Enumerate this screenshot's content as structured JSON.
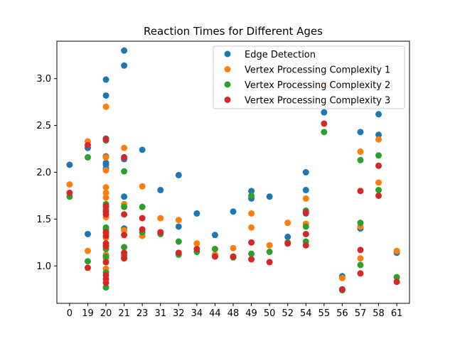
{
  "chart_data": {
    "type": "scatter",
    "title": "Reaction Times for Different Ages",
    "xlabel": "",
    "ylabel": "",
    "categories": [
      "0",
      "19",
      "20",
      "21",
      "23",
      "31",
      "32",
      "34",
      "44",
      "48",
      "49",
      "50",
      "52",
      "54",
      "55",
      "56",
      "57",
      "58",
      "61"
    ],
    "yticks": [
      "1.0",
      "1.5",
      "2.0",
      "2.5",
      "3.0"
    ],
    "ylim": [
      0.6,
      3.4
    ],
    "legend_position": "top-right",
    "series": [
      {
        "name": "Edge Detection",
        "color": "#1f77b4",
        "points": [
          [
            "0",
            2.08
          ],
          [
            "19",
            2.26
          ],
          [
            "19",
            1.34
          ],
          [
            "20",
            2.99
          ],
          [
            "20",
            2.82
          ],
          [
            "20",
            2.36
          ],
          [
            "20",
            2.17
          ],
          [
            "20",
            2.1
          ],
          [
            "20",
            2.08
          ],
          [
            "20",
            2.04
          ],
          [
            "21",
            3.3
          ],
          [
            "21",
            3.14
          ],
          [
            "21",
            2.14
          ],
          [
            "21",
            1.74
          ],
          [
            "21",
            1.4
          ],
          [
            "23",
            2.24
          ],
          [
            "31",
            1.81
          ],
          [
            "32",
            1.97
          ],
          [
            "32",
            1.42
          ],
          [
            "34",
            1.56
          ],
          [
            "44",
            1.33
          ],
          [
            "48",
            1.58
          ],
          [
            "49",
            1.8
          ],
          [
            "49",
            1.72
          ],
          [
            "50",
            1.74
          ],
          [
            "52",
            1.31
          ],
          [
            "54",
            2.0
          ],
          [
            "54",
            1.81
          ],
          [
            "54",
            1.56
          ],
          [
            "55",
            2.64
          ],
          [
            "56",
            0.89
          ],
          [
            "57",
            2.43
          ],
          [
            "57",
            1.4
          ],
          [
            "58",
            2.62
          ],
          [
            "58",
            2.4
          ],
          [
            "61",
            1.14
          ]
        ]
      },
      {
        "name": "Vertex Processing Complexity 1",
        "color": "#ff7f0e",
        "points": [
          [
            "0",
            1.87
          ],
          [
            "19",
            2.33
          ],
          [
            "19",
            1.16
          ],
          [
            "20",
            2.7
          ],
          [
            "20",
            2.16
          ],
          [
            "20",
            2.02
          ],
          [
            "20",
            1.84
          ],
          [
            "20",
            1.78
          ],
          [
            "20",
            1.73
          ],
          [
            "20",
            1.62
          ],
          [
            "20",
            1.58
          ],
          [
            "20",
            1.52
          ],
          [
            "20",
            1.35
          ],
          [
            "20",
            1.3
          ],
          [
            "20",
            1.22
          ],
          [
            "20",
            1.12
          ],
          [
            "20",
            1.08
          ],
          [
            "20",
            0.97
          ],
          [
            "21",
            2.26
          ],
          [
            "21",
            1.66
          ],
          [
            "21",
            1.38
          ],
          [
            "23",
            1.85
          ],
          [
            "23",
            1.32
          ],
          [
            "31",
            1.51
          ],
          [
            "32",
            1.49
          ],
          [
            "34",
            1.24
          ],
          [
            "44",
            1.12
          ],
          [
            "48",
            1.19
          ],
          [
            "49",
            1.56
          ],
          [
            "49",
            1.41
          ],
          [
            "50",
            1.22
          ],
          [
            "52",
            1.46
          ],
          [
            "54",
            1.72
          ],
          [
            "54",
            1.45
          ],
          [
            "55",
            2.94
          ],
          [
            "56",
            0.87
          ],
          [
            "57",
            2.22
          ],
          [
            "57",
            1.42
          ],
          [
            "57",
            1.08
          ],
          [
            "58",
            2.35
          ],
          [
            "58",
            1.89
          ],
          [
            "61",
            1.16
          ]
        ]
      },
      {
        "name": "Vertex Processing Complexity 2",
        "color": "#2ca02c",
        "points": [
          [
            "0",
            1.74
          ],
          [
            "19",
            2.16
          ],
          [
            "19",
            1.05
          ],
          [
            "20",
            2.34
          ],
          [
            "20",
            1.66
          ],
          [
            "20",
            1.6
          ],
          [
            "20",
            1.41
          ],
          [
            "20",
            1.39
          ],
          [
            "20",
            1.18
          ],
          [
            "20",
            1.1
          ],
          [
            "20",
            0.93
          ],
          [
            "20",
            0.77
          ],
          [
            "21",
            2.01
          ],
          [
            "21",
            1.63
          ],
          [
            "21",
            1.2
          ],
          [
            "21",
            1.11
          ],
          [
            "23",
            1.63
          ],
          [
            "23",
            1.36
          ],
          [
            "31",
            1.34
          ],
          [
            "32",
            1.26
          ],
          [
            "32",
            1.12
          ],
          [
            "34",
            1.15
          ],
          [
            "44",
            1.18
          ],
          [
            "48",
            1.09
          ],
          [
            "49",
            1.75
          ],
          [
            "49",
            1.13
          ],
          [
            "50",
            1.15
          ],
          [
            "52",
            1.25
          ],
          [
            "54",
            1.59
          ],
          [
            "54",
            1.42
          ],
          [
            "54",
            1.26
          ],
          [
            "55",
            2.43
          ],
          [
            "56",
            0.74
          ],
          [
            "57",
            2.13
          ],
          [
            "57",
            1.46
          ],
          [
            "57",
            1.01
          ],
          [
            "58",
            2.18
          ],
          [
            "58",
            1.81
          ],
          [
            "61",
            0.88
          ]
        ]
      },
      {
        "name": "Vertex Processing Complexity 3",
        "color": "#d62728",
        "points": [
          [
            "0",
            1.78
          ],
          [
            "19",
            2.29
          ],
          [
            "19",
            0.98
          ],
          [
            "20",
            2.35
          ],
          [
            "20",
            1.64
          ],
          [
            "20",
            1.58
          ],
          [
            "20",
            1.55
          ],
          [
            "20",
            1.36
          ],
          [
            "20",
            1.32
          ],
          [
            "20",
            1.24
          ],
          [
            "20",
            1.21
          ],
          [
            "20",
            1.04
          ],
          [
            "20",
            0.9
          ],
          [
            "20",
            0.86
          ],
          [
            "20",
            0.82
          ],
          [
            "21",
            2.16
          ],
          [
            "21",
            1.55
          ],
          [
            "21",
            1.33
          ],
          [
            "21",
            1.14
          ],
          [
            "21",
            1.08
          ],
          [
            "23",
            1.51
          ],
          [
            "23",
            1.39
          ],
          [
            "31",
            1.36
          ],
          [
            "32",
            1.14
          ],
          [
            "34",
            1.18
          ],
          [
            "44",
            1.1
          ],
          [
            "48",
            1.1
          ],
          [
            "49",
            1.25
          ],
          [
            "49",
            1.07
          ],
          [
            "50",
            1.04
          ],
          [
            "52",
            1.24
          ],
          [
            "54",
            1.57
          ],
          [
            "54",
            1.34
          ],
          [
            "54",
            1.22
          ],
          [
            "55",
            2.52
          ],
          [
            "56",
            0.75
          ],
          [
            "57",
            1.8
          ],
          [
            "57",
            1.17
          ],
          [
            "57",
            0.92
          ],
          [
            "58",
            2.07
          ],
          [
            "58",
            1.75
          ],
          [
            "61",
            0.83
          ]
        ]
      }
    ]
  }
}
